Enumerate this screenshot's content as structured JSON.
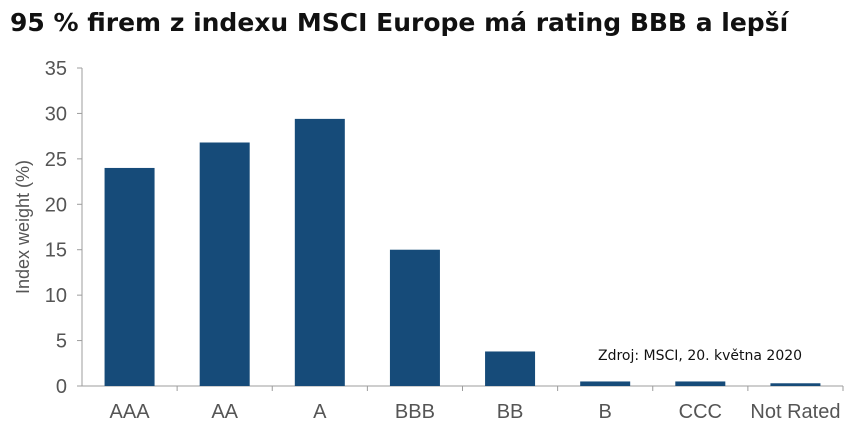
{
  "source_note": "Zdroj: MSCI, 20. května 2020",
  "chart_data": {
    "type": "bar",
    "title": "95 % firem z indexu MSCI Europe má rating BBB a lepší",
    "xlabel": "",
    "ylabel": "Index weight (%)",
    "categories": [
      "AAA",
      "AA",
      "A",
      "BBB",
      "BB",
      "B",
      "CCC",
      "Not Rated"
    ],
    "values": [
      24.0,
      26.8,
      29.4,
      15.0,
      3.8,
      0.5,
      0.5,
      0.3
    ],
    "ylim": [
      0,
      35
    ],
    "yticks": [
      0,
      5,
      10,
      15,
      20,
      25,
      30,
      35
    ],
    "grid": false,
    "legend": "none",
    "bar_color": "#164b79",
    "axis_color": "#9c9c9c",
    "tick_label_color": "#555555"
  }
}
